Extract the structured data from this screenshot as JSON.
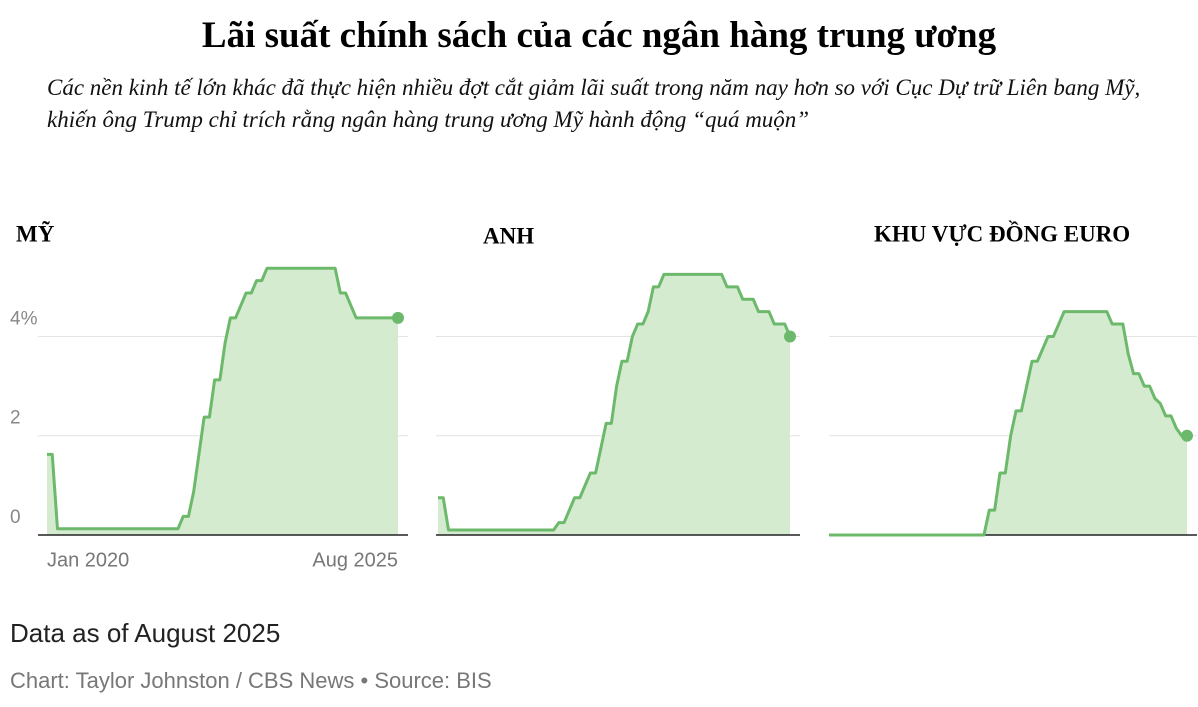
{
  "title": "Lãi suất chính sách của các ngân hàng trung ương",
  "subtitle": "Các nền kinh tế lớn khác đã thực hiện nhiều đợt cắt giảm lãi suất trong năm nay hơn so với Cục Dự trữ Liên bang Mỹ, khiến ông Trump chỉ trích rằng ngân hàng trung ương Mỹ hành động “quá muộn”",
  "note": "Data as of August 2025",
  "credit": "Chart: Taylor Johnston / CBS News • Source: BIS",
  "chart_data": [
    {
      "type": "line",
      "title": "MỸ",
      "color": "#6cb96b",
      "fill": "#d4ebd0",
      "grid": true,
      "ylim": [
        0,
        5.5
      ],
      "yticks": [
        0,
        2,
        {
          "value": 4,
          "label": "4%"
        }
      ],
      "xticks": [
        {
          "value": "2020-01",
          "label": "Jan 2020"
        },
        {
          "value": "2025-08",
          "label": "Aug 2025"
        }
      ],
      "x": [
        "2020-01",
        "2020-02",
        "2020-03",
        "2020-04",
        "2020-05",
        "2020-06",
        "2020-07",
        "2020-08",
        "2020-09",
        "2020-10",
        "2020-11",
        "2020-12",
        "2021-01",
        "2021-02",
        "2021-03",
        "2021-04",
        "2021-05",
        "2021-06",
        "2021-07",
        "2021-08",
        "2021-09",
        "2021-10",
        "2021-11",
        "2021-12",
        "2022-01",
        "2022-02",
        "2022-03",
        "2022-04",
        "2022-05",
        "2022-06",
        "2022-07",
        "2022-08",
        "2022-09",
        "2022-10",
        "2022-11",
        "2022-12",
        "2023-01",
        "2023-02",
        "2023-03",
        "2023-04",
        "2023-05",
        "2023-06",
        "2023-07",
        "2023-08",
        "2023-09",
        "2023-10",
        "2023-11",
        "2023-12",
        "2024-01",
        "2024-02",
        "2024-03",
        "2024-04",
        "2024-05",
        "2024-06",
        "2024-07",
        "2024-08",
        "2024-09",
        "2024-10",
        "2024-11",
        "2024-12",
        "2025-01",
        "2025-02",
        "2025-03",
        "2025-04",
        "2025-05",
        "2025-06",
        "2025-07",
        "2025-08"
      ],
      "values": [
        1.625,
        1.625,
        0.125,
        0.125,
        0.125,
        0.125,
        0.125,
        0.125,
        0.125,
        0.125,
        0.125,
        0.125,
        0.125,
        0.125,
        0.125,
        0.125,
        0.125,
        0.125,
        0.125,
        0.125,
        0.125,
        0.125,
        0.125,
        0.125,
        0.125,
        0.125,
        0.375,
        0.375,
        0.875,
        1.625,
        2.375,
        2.375,
        3.125,
        3.125,
        3.875,
        4.375,
        4.375,
        4.625,
        4.875,
        4.875,
        5.125,
        5.125,
        5.375,
        5.375,
        5.375,
        5.375,
        5.375,
        5.375,
        5.375,
        5.375,
        5.375,
        5.375,
        5.375,
        5.375,
        5.375,
        5.375,
        4.875,
        4.875,
        4.625,
        4.375,
        4.375,
        4.375,
        4.375,
        4.375,
        4.375,
        4.375,
        4.375,
        4.375
      ]
    },
    {
      "type": "line",
      "title": "ANH",
      "color": "#6cb96b",
      "fill": "#d4ebd0",
      "grid": true,
      "ylim": [
        0,
        5.5
      ],
      "x": [
        "2020-01",
        "2020-02",
        "2020-03",
        "2020-04",
        "2020-05",
        "2020-06",
        "2020-07",
        "2020-08",
        "2020-09",
        "2020-10",
        "2020-11",
        "2020-12",
        "2021-01",
        "2021-02",
        "2021-03",
        "2021-04",
        "2021-05",
        "2021-06",
        "2021-07",
        "2021-08",
        "2021-09",
        "2021-10",
        "2021-11",
        "2021-12",
        "2022-01",
        "2022-02",
        "2022-03",
        "2022-04",
        "2022-05",
        "2022-06",
        "2022-07",
        "2022-08",
        "2022-09",
        "2022-10",
        "2022-11",
        "2022-12",
        "2023-01",
        "2023-02",
        "2023-03",
        "2023-04",
        "2023-05",
        "2023-06",
        "2023-07",
        "2023-08",
        "2023-09",
        "2023-10",
        "2023-11",
        "2023-12",
        "2024-01",
        "2024-02",
        "2024-03",
        "2024-04",
        "2024-05",
        "2024-06",
        "2024-07",
        "2024-08",
        "2024-09",
        "2024-10",
        "2024-11",
        "2024-12",
        "2025-01",
        "2025-02",
        "2025-03",
        "2025-04",
        "2025-05",
        "2025-06",
        "2025-07",
        "2025-08"
      ],
      "values": [
        0.75,
        0.75,
        0.1,
        0.1,
        0.1,
        0.1,
        0.1,
        0.1,
        0.1,
        0.1,
        0.1,
        0.1,
        0.1,
        0.1,
        0.1,
        0.1,
        0.1,
        0.1,
        0.1,
        0.1,
        0.1,
        0.1,
        0.1,
        0.25,
        0.25,
        0.5,
        0.75,
        0.75,
        1.0,
        1.25,
        1.25,
        1.75,
        2.25,
        2.25,
        3.0,
        3.5,
        3.5,
        4.0,
        4.25,
        4.25,
        4.5,
        5.0,
        5.0,
        5.25,
        5.25,
        5.25,
        5.25,
        5.25,
        5.25,
        5.25,
        5.25,
        5.25,
        5.25,
        5.25,
        5.25,
        5.0,
        5.0,
        5.0,
        4.75,
        4.75,
        4.75,
        4.5,
        4.5,
        4.5,
        4.25,
        4.25,
        4.25,
        4.0
      ]
    },
    {
      "type": "line",
      "title": "KHU VỰC ĐỒNG EURO",
      "color": "#6cb96b",
      "fill": "#d4ebd0",
      "grid": true,
      "ylim": [
        0,
        5.5
      ],
      "x": [
        "2020-01",
        "2020-02",
        "2020-03",
        "2020-04",
        "2020-05",
        "2020-06",
        "2020-07",
        "2020-08",
        "2020-09",
        "2020-10",
        "2020-11",
        "2020-12",
        "2021-01",
        "2021-02",
        "2021-03",
        "2021-04",
        "2021-05",
        "2021-06",
        "2021-07",
        "2021-08",
        "2021-09",
        "2021-10",
        "2021-11",
        "2021-12",
        "2022-01",
        "2022-02",
        "2022-03",
        "2022-04",
        "2022-05",
        "2022-06",
        "2022-07",
        "2022-08",
        "2022-09",
        "2022-10",
        "2022-11",
        "2022-12",
        "2023-01",
        "2023-02",
        "2023-03",
        "2023-04",
        "2023-05",
        "2023-06",
        "2023-07",
        "2023-08",
        "2023-09",
        "2023-10",
        "2023-11",
        "2023-12",
        "2024-01",
        "2024-02",
        "2024-03",
        "2024-04",
        "2024-05",
        "2024-06",
        "2024-07",
        "2024-08",
        "2024-09",
        "2024-10",
        "2024-11",
        "2024-12",
        "2025-01",
        "2025-02",
        "2025-03",
        "2025-04",
        "2025-05",
        "2025-06",
        "2025-07",
        "2025-08"
      ],
      "values": [
        0,
        0,
        0,
        0,
        0,
        0,
        0,
        0,
        0,
        0,
        0,
        0,
        0,
        0,
        0,
        0,
        0,
        0,
        0,
        0,
        0,
        0,
        0,
        0,
        0,
        0,
        0,
        0,
        0,
        0,
        0.5,
        0.5,
        1.25,
        1.25,
        2.0,
        2.5,
        2.5,
        3.0,
        3.5,
        3.5,
        3.75,
        4.0,
        4.0,
        4.25,
        4.5,
        4.5,
        4.5,
        4.5,
        4.5,
        4.5,
        4.5,
        4.5,
        4.5,
        4.25,
        4.25,
        4.25,
        3.65,
        3.25,
        3.25,
        3.0,
        3.0,
        2.75,
        2.65,
        2.4,
        2.4,
        2.15,
        2.0,
        2.0
      ]
    }
  ]
}
